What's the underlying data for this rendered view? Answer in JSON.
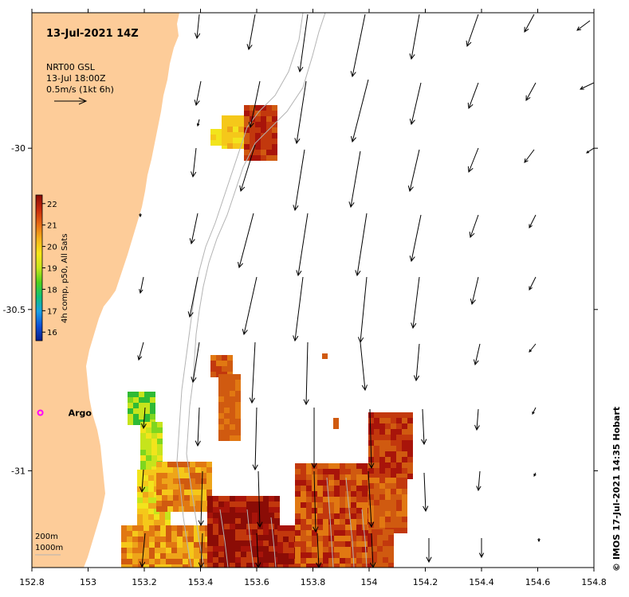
{
  "title": "13-Jul-2021 14Z",
  "current_legend": {
    "line1": "NRT00 GSL",
    "line2": "13-Jul 18:00Z",
    "line3": "0.5m/s (1kt 6h)"
  },
  "colorbar": {
    "label": "4h comp, p50, All Sats",
    "ticks": [
      "16",
      "17",
      "18",
      "19",
      "20",
      "21",
      "22"
    ],
    "min": 15.6,
    "max": 22.4,
    "colors": [
      "#081d8a",
      "#0f4fd6",
      "#1aa0e6",
      "#11c27a",
      "#4ed21c",
      "#c8e61b",
      "#f7e617",
      "#f5b21a",
      "#e86a14",
      "#c92a0c",
      "#8b0c06"
    ]
  },
  "argo": {
    "label": "Argo",
    "lon": 152.83,
    "lat": -30.82,
    "color": "#ff00ff"
  },
  "depth_legend": {
    "line1": "200m",
    "line2": "1000m"
  },
  "credit": "© IMOS 17-Jul-2021 14:35 Hobart",
  "axes": {
    "lon_ticks": [
      "152.8",
      "153",
      "153.2",
      "153.4",
      "153.6",
      "153.8",
      "154",
      "154.2",
      "154.4",
      "154.6",
      "154.8"
    ],
    "lat_ticks": [
      "-30",
      "-30.5",
      "-31"
    ],
    "lon_range": [
      152.8,
      154.8
    ],
    "lat_range": [
      -31.3,
      -29.58
    ]
  },
  "colors": {
    "land": "#fdcc99",
    "ocean": "#ffffff",
    "contour": "#b4b4b4",
    "arrow": "#000000"
  }
}
